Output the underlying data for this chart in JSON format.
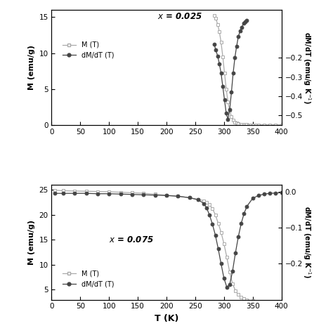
{
  "top": {
    "label": "x = 0.025",
    "M_T": {
      "T": [
        283,
        286,
        289,
        292,
        295,
        298,
        301,
        304,
        307,
        310,
        313,
        316,
        319,
        322,
        325,
        328,
        331,
        334,
        337,
        340,
        343,
        346,
        350,
        355,
        360,
        370,
        380,
        390,
        400
      ],
      "M": [
        15.2,
        14.8,
        14.0,
        13.0,
        11.5,
        9.5,
        7.2,
        5.0,
        3.2,
        2.0,
        1.2,
        0.7,
        0.4,
        0.25,
        0.15,
        0.1,
        0.08,
        0.06,
        0.05,
        0.04,
        0.03,
        0.02,
        0.01,
        0.01,
        0.01,
        0.0,
        0.0,
        0.0,
        0.0
      ]
    },
    "dMdT_T": {
      "T": [
        283,
        286,
        289,
        292,
        295,
        298,
        301,
        304,
        307,
        310,
        313,
        316,
        319,
        322,
        325,
        328,
        331,
        334,
        337,
        340
      ],
      "dMdT": [
        -0.13,
        -0.16,
        -0.19,
        -0.23,
        -0.28,
        -0.35,
        -0.42,
        -0.49,
        -0.52,
        -0.47,
        -0.38,
        -0.28,
        -0.2,
        -0.14,
        -0.09,
        -0.06,
        -0.04,
        -0.02,
        -0.01,
        -0.005
      ]
    },
    "xlim": [
      0,
      400
    ],
    "ylim_left": [
      0,
      16
    ],
    "ylim_right": [
      -0.55,
      0.05
    ],
    "yticks_left": [
      0,
      5,
      10,
      15
    ],
    "yticks_right": [
      -0.5,
      -0.4,
      -0.3,
      -0.2
    ],
    "xticks": [
      0,
      50,
      100,
      150,
      200,
      250,
      300,
      350,
      400
    ]
  },
  "bottom": {
    "label": "x = 0.075",
    "M_T": {
      "T": [
        5,
        20,
        40,
        60,
        80,
        100,
        120,
        140,
        160,
        180,
        200,
        220,
        240,
        255,
        265,
        270,
        275,
        280,
        285,
        290,
        295,
        300,
        305,
        310,
        315,
        320,
        325,
        330,
        335,
        340,
        350,
        360,
        370,
        380,
        390,
        400
      ],
      "M": [
        24.9,
        24.8,
        24.75,
        24.7,
        24.65,
        24.6,
        24.5,
        24.4,
        24.3,
        24.1,
        23.9,
        23.7,
        23.4,
        23.1,
        22.8,
        22.5,
        22.0,
        21.2,
        20.0,
        18.3,
        16.5,
        14.2,
        11.5,
        8.5,
        6.2,
        4.8,
        4.0,
        3.5,
        3.2,
        3.0,
        2.8,
        2.6,
        2.5,
        2.4,
        2.3,
        2.2
      ]
    },
    "dMdT_T": {
      "T": [
        5,
        20,
        40,
        60,
        80,
        100,
        120,
        140,
        160,
        180,
        200,
        220,
        240,
        255,
        265,
        270,
        275,
        280,
        285,
        290,
        295,
        300,
        305,
        310,
        315,
        320,
        325,
        330,
        335,
        340,
        350,
        360,
        370,
        380,
        390,
        400
      ],
      "dMdT": [
        -0.004,
        -0.004,
        -0.004,
        -0.004,
        -0.005,
        -0.005,
        -0.006,
        -0.007,
        -0.008,
        -0.009,
        -0.01,
        -0.012,
        -0.016,
        -0.022,
        -0.032,
        -0.045,
        -0.065,
        -0.09,
        -0.12,
        -0.158,
        -0.2,
        -0.24,
        -0.265,
        -0.258,
        -0.22,
        -0.17,
        -0.125,
        -0.088,
        -0.06,
        -0.04,
        -0.018,
        -0.01,
        -0.006,
        -0.004,
        -0.003,
        -0.002
      ]
    },
    "xlim": [
      0,
      400
    ],
    "ylim_left": [
      3,
      26
    ],
    "ylim_right": [
      -0.3,
      0.02
    ],
    "yticks_left": [
      5,
      10,
      15,
      20,
      25
    ],
    "yticks_right": [
      0.0,
      -0.1,
      -0.2
    ],
    "xticks": [
      0,
      50,
      100,
      150,
      200,
      250,
      300,
      350,
      400
    ]
  },
  "xlabel": "T (K)",
  "ylabel_left": "M (emu/g)",
  "line_color_M": "#aaaaaa",
  "line_color_dMdT": "#444444",
  "bg_color": "#ffffff"
}
